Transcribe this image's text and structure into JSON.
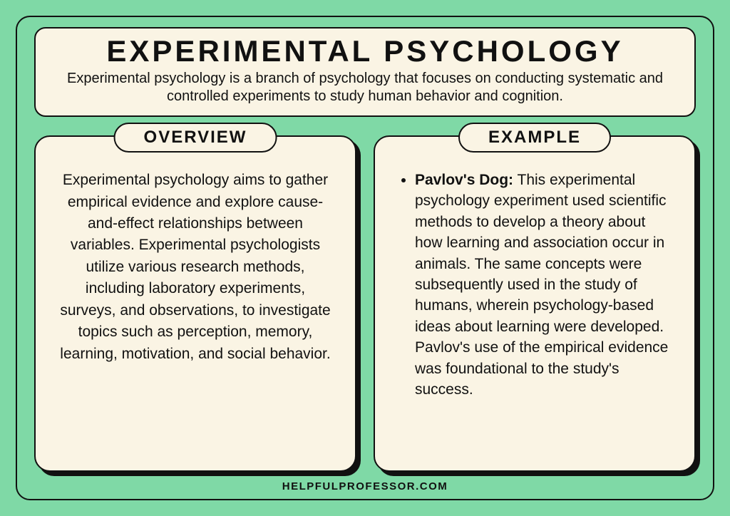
{
  "header": {
    "title": "EXPERIMENTAL PSYCHOLOGY",
    "subtitle": "Experimental psychology is a branch of psychology that focuses on conducting systematic and controlled experiments to study human behavior and cognition."
  },
  "overview": {
    "label": "OVERVIEW",
    "text": "Experimental psychology aims to gather empirical evidence and explore cause-and-effect relationships between variables. Experimental psychologists utilize various research methods, including laboratory experiments, surveys, and observations, to investigate topics such as perception, memory, learning, motivation, and social behavior."
  },
  "example": {
    "label": "EXAMPLE",
    "item_title": "Pavlov's Dog:",
    "item_text": " This experimental psychology experiment used scientific methods to develop a theory about how learning and association occur in animals. The same concepts were subsequently used in the study of humans, wherein psychology-based ideas about learning were developed. Pavlov's use of the empirical evidence was foundational to the study's success."
  },
  "footer": {
    "text": "HELPFULPROFESSOR.COM"
  },
  "colors": {
    "background": "#7fd9a6",
    "card_bg": "#faf4e4",
    "border": "#111111",
    "text": "#111111"
  }
}
